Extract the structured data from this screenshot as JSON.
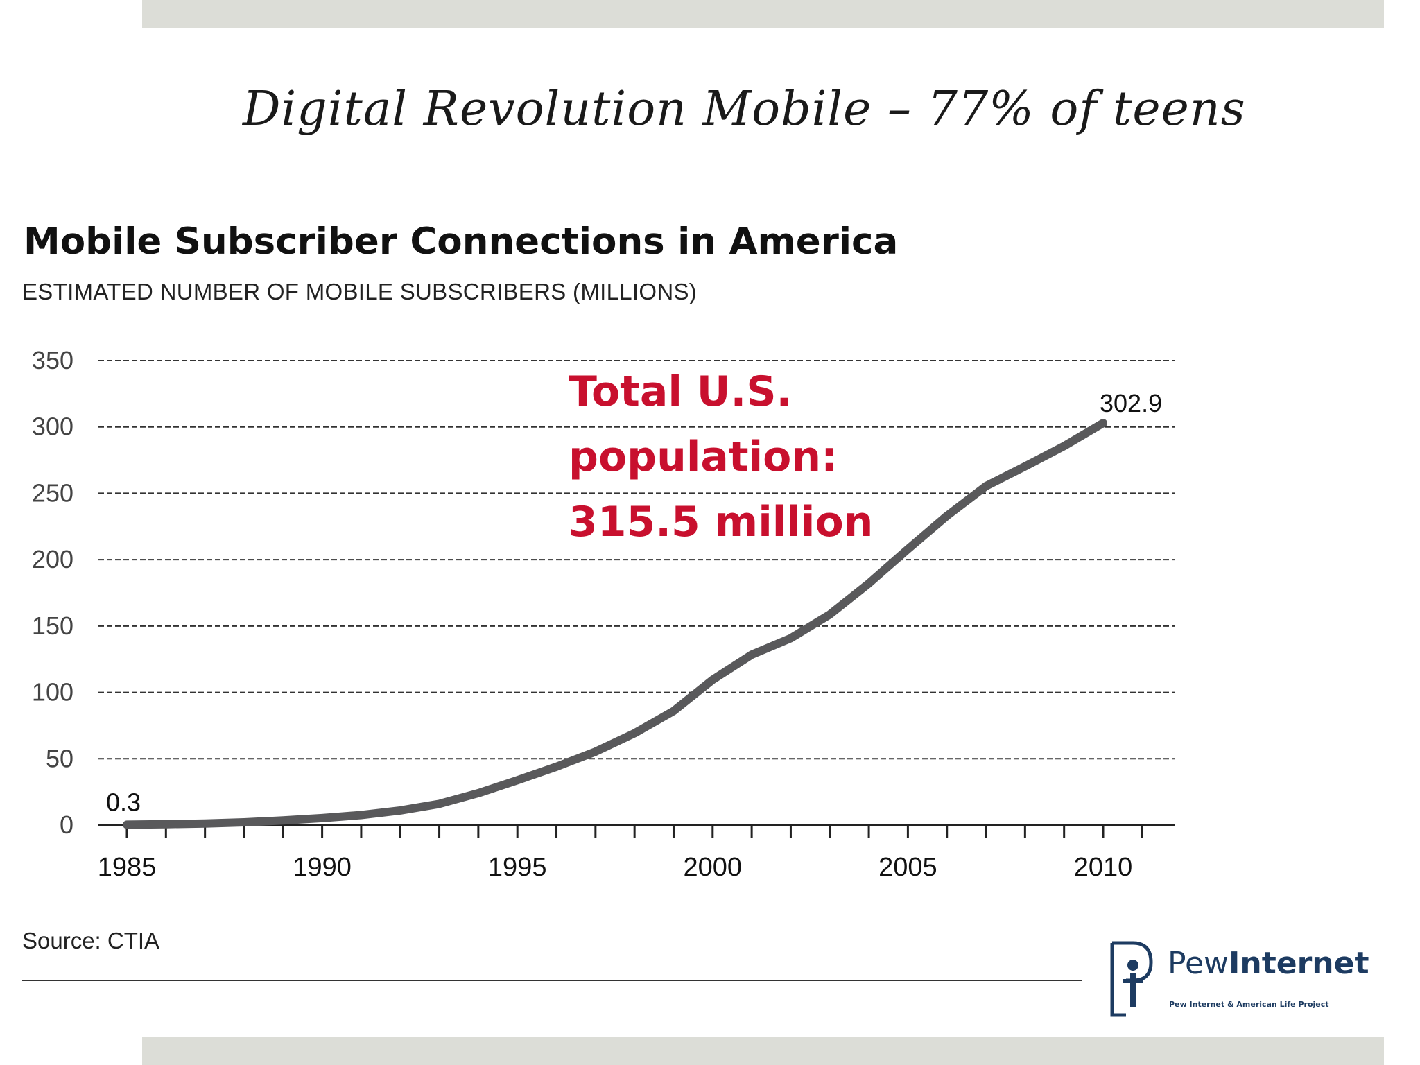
{
  "slide": {
    "title": "Digital Revolution Mobile – 77% of teens"
  },
  "chart_data": {
    "type": "line",
    "title": "Mobile Subscriber Connections in America",
    "subtitle": "ESTIMATED NUMBER OF MOBILE SUBSCRIBERS (MILLIONS)",
    "xlabel": "",
    "ylabel": "",
    "x": [
      1985,
      1986,
      1987,
      1988,
      1989,
      1990,
      1991,
      1992,
      1993,
      1994,
      1995,
      1996,
      1997,
      1998,
      1999,
      2000,
      2001,
      2002,
      2003,
      2004,
      2005,
      2006,
      2007,
      2008,
      2009,
      2010
    ],
    "values": [
      0.3,
      0.7,
      1.2,
      2.1,
      3.5,
      5.3,
      7.6,
      11.0,
      16.0,
      24.1,
      33.8,
      44.0,
      55.3,
      69.2,
      86.0,
      109.5,
      128.4,
      140.8,
      158.7,
      182.1,
      207.9,
      233.0,
      255.4,
      270.3,
      285.6,
      302.9
    ],
    "xticks": [
      "1985",
      "1990",
      "1995",
      "2000",
      "2005",
      "2010"
    ],
    "yticks": [
      "350",
      "300",
      "250",
      "200",
      "150",
      "100",
      "50",
      "0"
    ],
    "ylim": [
      0,
      350
    ],
    "xlim": [
      1985,
      2012
    ],
    "grid": true,
    "line_color": "#59595b",
    "data_labels": [
      {
        "text": "0.3"
      },
      {
        "text": "302.9"
      }
    ],
    "annotation": [
      "Total U.S.",
      "population:",
      "315.5 million"
    ],
    "annotation_color": "#c8102e"
  },
  "footer": {
    "source": "Source: CTIA",
    "logo_word_light": "Pew",
    "logo_word_bold": "Internet",
    "logo_tagline": "Pew Internet & American Life Project"
  }
}
